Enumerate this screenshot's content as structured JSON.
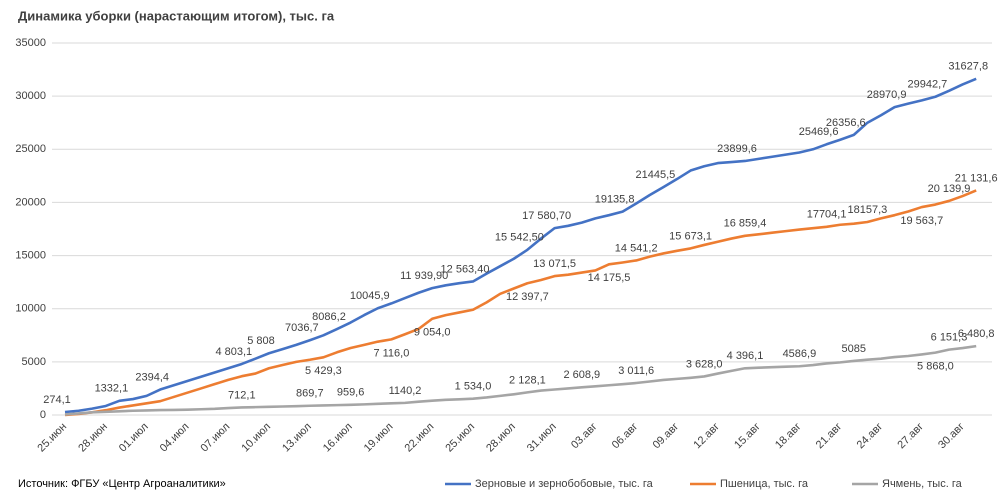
{
  "chart_data": {
    "type": "line",
    "title": "Динамика уборки (нарастающим итогом), тыс. га",
    "source": "Источник: ФГБУ «Центр Агроаналитики»",
    "categories": [
      "25.июн",
      null,
      null,
      "28.июн",
      null,
      null,
      "01.июл",
      null,
      null,
      "04.июл",
      null,
      null,
      "07.июл",
      null,
      null,
      "10.июл",
      null,
      null,
      "13.июл",
      null,
      null,
      "16.июл",
      null,
      null,
      "19.июл",
      null,
      null,
      "22.июл",
      null,
      null,
      "25.июл",
      null,
      null,
      "28.июл",
      null,
      null,
      "31.июл",
      null,
      null,
      "03.авг",
      null,
      null,
      "06.авг",
      null,
      null,
      "09.авг",
      null,
      null,
      "12.авг",
      null,
      null,
      "15.авг",
      null,
      null,
      "18.авг",
      null,
      null,
      "21.авг",
      null,
      null,
      "24.авг",
      null,
      null,
      "27.авг",
      null,
      null,
      "30.авг",
      null
    ],
    "series": [
      {
        "name": "Зерновые и зернобобовые, тыс. га",
        "color": "#4472c4",
        "values": [
          274.1,
          400,
          600,
          850,
          1332.1,
          1500,
          1800,
          2394.4,
          2800,
          3200,
          3600,
          4000,
          4400,
          4803.1,
          5300,
          5808,
          6200,
          6600,
          7036.7,
          7500,
          8086.2,
          8700,
          9400,
          10045.9,
          10500,
          11000,
          11500,
          11939.9,
          12200,
          12400,
          12563.4,
          13300,
          14000,
          14700,
          15542.5,
          16600,
          17580.7,
          17800,
          18100,
          18500,
          18800,
          19135.8,
          19900,
          20700,
          21445.5,
          22200,
          23000,
          23400,
          23700,
          23800,
          23899.6,
          24100,
          24300,
          24500,
          24700,
          25000,
          25469.6,
          25900,
          26356.6,
          27500,
          28200,
          28970.9,
          29300,
          29600,
          29942.7,
          30500,
          31100,
          31627.8
        ],
        "value_labels": [
          "274,1",
          null,
          null,
          null,
          "1332,1",
          null,
          null,
          "2394,4",
          null,
          null,
          null,
          null,
          null,
          "4 803,1",
          null,
          "5 808",
          null,
          null,
          "7036,7",
          null,
          "8086,2",
          null,
          null,
          "10045,9",
          null,
          null,
          null,
          "11 939,90",
          null,
          null,
          "12 563,40",
          null,
          null,
          null,
          "15 542,50",
          null,
          "17 580,70",
          null,
          null,
          null,
          null,
          "19135,8",
          null,
          null,
          "21445,5",
          null,
          null,
          null,
          null,
          null,
          "23899,6",
          null,
          null,
          null,
          null,
          null,
          "25469,6",
          null,
          "26356,6",
          null,
          null,
          "28970,9",
          null,
          null,
          "29942,7",
          null,
          null,
          "31627,8"
        ]
      },
      {
        "name": "Пшеница, тыс. га",
        "color": "#ed7d31",
        "values": [
          0,
          100,
          250,
          450,
          700,
          900,
          1100,
          1300,
          1700,
          2100,
          2500,
          2900,
          3300,
          3650,
          3900,
          4400,
          4700,
          5000,
          5200,
          5429.3,
          5900,
          6300,
          6600,
          6900,
          7116,
          7600,
          8100,
          9054,
          9400,
          9650,
          9900,
          10600,
          11400,
          11900,
          12397.7,
          12700,
          13071.5,
          13200,
          13400,
          13600,
          14175.5,
          14350,
          14541.2,
          14900,
          15200,
          15450,
          15673.1,
          16000,
          16300,
          16600,
          16859.4,
          17000,
          17150,
          17300,
          17450,
          17580,
          17704.1,
          17900,
          18000,
          18157.3,
          18500,
          18800,
          19150,
          19563.7,
          19800,
          20139.9,
          20600,
          21131.6
        ],
        "value_labels": [
          null,
          null,
          null,
          null,
          null,
          null,
          null,
          null,
          null,
          null,
          null,
          null,
          null,
          null,
          null,
          null,
          null,
          null,
          null,
          "5 429,3",
          null,
          null,
          null,
          null,
          "7 116,0",
          null,
          null,
          "9 054,0",
          null,
          null,
          null,
          null,
          null,
          null,
          "12 397,7",
          null,
          "13 071,5",
          null,
          null,
          null,
          "14 175,5",
          null,
          "14 541,2",
          null,
          null,
          null,
          "15 673,1",
          null,
          null,
          null,
          "16 859,4",
          null,
          null,
          null,
          null,
          null,
          "17704,1",
          null,
          null,
          "18157,3",
          null,
          null,
          null,
          "19 563,7",
          null,
          "20 139,9",
          null,
          "21 131,6"
        ]
      },
      {
        "name": "Ячмень, тыс. га",
        "color": "#a5a5a5",
        "values": [
          50,
          150,
          250,
          300,
          350,
          400,
          430,
          460,
          480,
          500,
          540,
          580,
          650,
          712.1,
          740,
          770,
          800,
          830,
          869.7,
          900,
          930,
          959.6,
          1000,
          1050,
          1100,
          1140.2,
          1250,
          1350,
          1430,
          1480,
          1534,
          1650,
          1800,
          1950,
          2128.1,
          2300,
          2400,
          2500,
          2608.9,
          2700,
          2800,
          2900,
          3011.6,
          3150,
          3300,
          3400,
          3500,
          3628,
          3900,
          4150,
          4396.1,
          4450,
          4500,
          4550,
          4586.9,
          4700,
          4850,
          4950,
          5085,
          5200,
          5300,
          5450,
          5550,
          5700,
          5868,
          6151.3,
          6300,
          6480.8
        ],
        "value_labels": [
          null,
          null,
          null,
          null,
          null,
          null,
          null,
          null,
          null,
          null,
          null,
          null,
          null,
          "712,1",
          null,
          null,
          null,
          null,
          "869,7",
          null,
          null,
          "959,6",
          null,
          null,
          null,
          "1140,2",
          null,
          null,
          null,
          null,
          "1 534,0",
          null,
          null,
          null,
          "2 128,1",
          null,
          null,
          null,
          "2 608,9",
          null,
          null,
          null,
          "3 011,6",
          null,
          null,
          null,
          null,
          "3 628,0",
          null,
          null,
          "4 396,1",
          null,
          null,
          null,
          "4586,9",
          null,
          null,
          null,
          "5085",
          null,
          null,
          null,
          null,
          null,
          "5 868,0",
          "6 151,3",
          null,
          "6 480,8"
        ]
      }
    ],
    "ylim": [
      0,
      35000
    ],
    "yticks": [
      0,
      5000,
      10000,
      15000,
      20000,
      25000,
      30000,
      35000
    ],
    "grid": true
  }
}
